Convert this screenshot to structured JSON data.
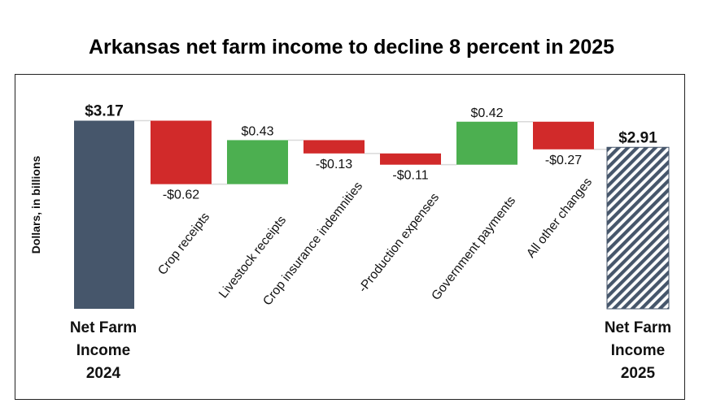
{
  "chart_data": {
    "type": "waterfall",
    "title": "Arkansas net farm income to decline 8 percent in 2025",
    "ylabel": "Dollars, in billions",
    "start": {
      "label_lines": [
        "Net Farm",
        "Income",
        "2024"
      ],
      "value": 3.17,
      "value_label": "$3.17",
      "color": "#46566b"
    },
    "changes": [
      {
        "category": "Crop receipts",
        "value": -0.62,
        "value_label": "-$0.62"
      },
      {
        "category": "Livestock receipts",
        "value": 0.43,
        "value_label": "$0.43"
      },
      {
        "category": "Crop insurance indemnities",
        "value": -0.13,
        "value_label": "-$0.13"
      },
      {
        "category": "-Production expenses",
        "value": -0.11,
        "value_label": "-$0.11"
      },
      {
        "category": "Government payments",
        "value": 0.42,
        "value_label": "$0.42"
      },
      {
        "category": "All other changes",
        "value": -0.27,
        "value_label": "-$0.27"
      }
    ],
    "end": {
      "label_lines": [
        "Net Farm",
        "Income",
        "2025"
      ],
      "value": 2.91,
      "value_label": "$2.91",
      "color": "#46566b",
      "pattern": "diagonal-hatch"
    },
    "colors": {
      "increase": "#4caf50",
      "decrease": "#d12a2a",
      "connector": "#d9d9d9"
    }
  }
}
